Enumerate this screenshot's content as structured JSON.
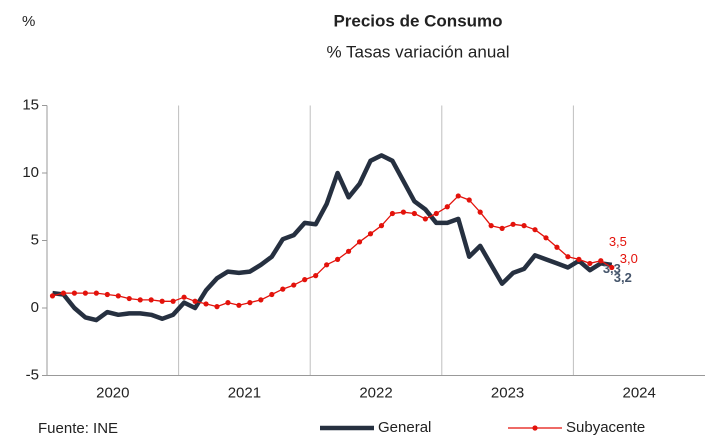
{
  "chart_data": {
    "type": "line",
    "title": "Precios de Consumo",
    "subtitle": "% Tasas variación anual",
    "y_label": "%",
    "source": "Fuente: INE",
    "categories": [
      null,
      null,
      null,
      null,
      null,
      null,
      "2020",
      null,
      null,
      null,
      null,
      null,
      null,
      null,
      null,
      null,
      null,
      null,
      "2021",
      null,
      null,
      null,
      null,
      null,
      null,
      null,
      null,
      null,
      null,
      null,
      "2022",
      null,
      null,
      null,
      null,
      null,
      null,
      null,
      null,
      null,
      null,
      null,
      "2023",
      null,
      null,
      null,
      null,
      null,
      null,
      null,
      null,
      null,
      null,
      null,
      "2024",
      null,
      null,
      null,
      null,
      null
    ],
    "ylim": [
      -5,
      15
    ],
    "yticks": [
      -5,
      0,
      5,
      10,
      15
    ],
    "grid": false,
    "series": [
      {
        "name": "General",
        "color": "#263040",
        "marker": false,
        "values": [
          1.1,
          1.0,
          0.0,
          -0.7,
          -0.9,
          -0.3,
          -0.5,
          -0.4,
          -0.4,
          -0.5,
          -0.8,
          -0.5,
          0.4,
          0.0,
          1.3,
          2.2,
          2.7,
          2.6,
          2.7,
          3.2,
          3.8,
          5.1,
          5.4,
          6.3,
          6.2,
          7.7,
          10.0,
          8.2,
          9.2,
          10.9,
          11.3,
          10.9,
          9.4,
          7.9,
          7.3,
          6.3,
          6.3,
          6.6,
          3.8,
          4.6,
          3.2,
          1.8,
          2.6,
          2.9,
          3.9,
          3.6,
          3.3,
          3.0,
          3.5,
          2.8,
          3.3,
          3.2,
          null,
          null,
          null,
          null,
          null,
          null,
          null,
          null
        ],
        "value_labels": [
          null,
          null,
          null,
          null,
          null,
          null,
          null,
          null,
          null,
          null,
          null,
          null,
          null,
          null,
          null,
          null,
          null,
          null,
          null,
          null,
          null,
          null,
          null,
          null,
          null,
          null,
          null,
          null,
          null,
          null,
          null,
          null,
          null,
          null,
          null,
          null,
          null,
          null,
          null,
          null,
          null,
          null,
          null,
          null,
          null,
          null,
          null,
          null,
          null,
          null,
          "3,3",
          "3,2",
          null,
          null,
          null,
          null,
          null,
          null,
          null,
          null
        ]
      },
      {
        "name": "Subyacente",
        "color": "#e3120b",
        "marker": true,
        "values": [
          0.9,
          1.1,
          1.1,
          1.1,
          1.1,
          1.0,
          0.9,
          0.7,
          0.6,
          0.6,
          0.5,
          0.5,
          0.8,
          0.5,
          0.3,
          0.1,
          0.4,
          0.2,
          0.4,
          0.6,
          1.0,
          1.4,
          1.7,
          2.1,
          2.4,
          3.2,
          3.6,
          4.2,
          4.9,
          5.5,
          6.1,
          7.0,
          7.1,
          7.0,
          6.6,
          7.0,
          7.5,
          8.3,
          8.0,
          7.1,
          6.1,
          5.9,
          6.2,
          6.1,
          5.8,
          5.2,
          4.5,
          3.8,
          3.6,
          3.3,
          3.5,
          3.0,
          null,
          null,
          null,
          null,
          null,
          null,
          null,
          null
        ],
        "value_labels": [
          null,
          null,
          null,
          null,
          null,
          null,
          null,
          null,
          null,
          null,
          null,
          null,
          null,
          null,
          null,
          null,
          null,
          null,
          null,
          null,
          null,
          null,
          null,
          null,
          null,
          null,
          null,
          null,
          null,
          null,
          null,
          null,
          null,
          null,
          null,
          null,
          null,
          null,
          null,
          null,
          null,
          null,
          null,
          null,
          null,
          null,
          null,
          null,
          null,
          null,
          "3,5",
          "3,0",
          null,
          null,
          null,
          null,
          null,
          null,
          null,
          null
        ]
      }
    ]
  }
}
